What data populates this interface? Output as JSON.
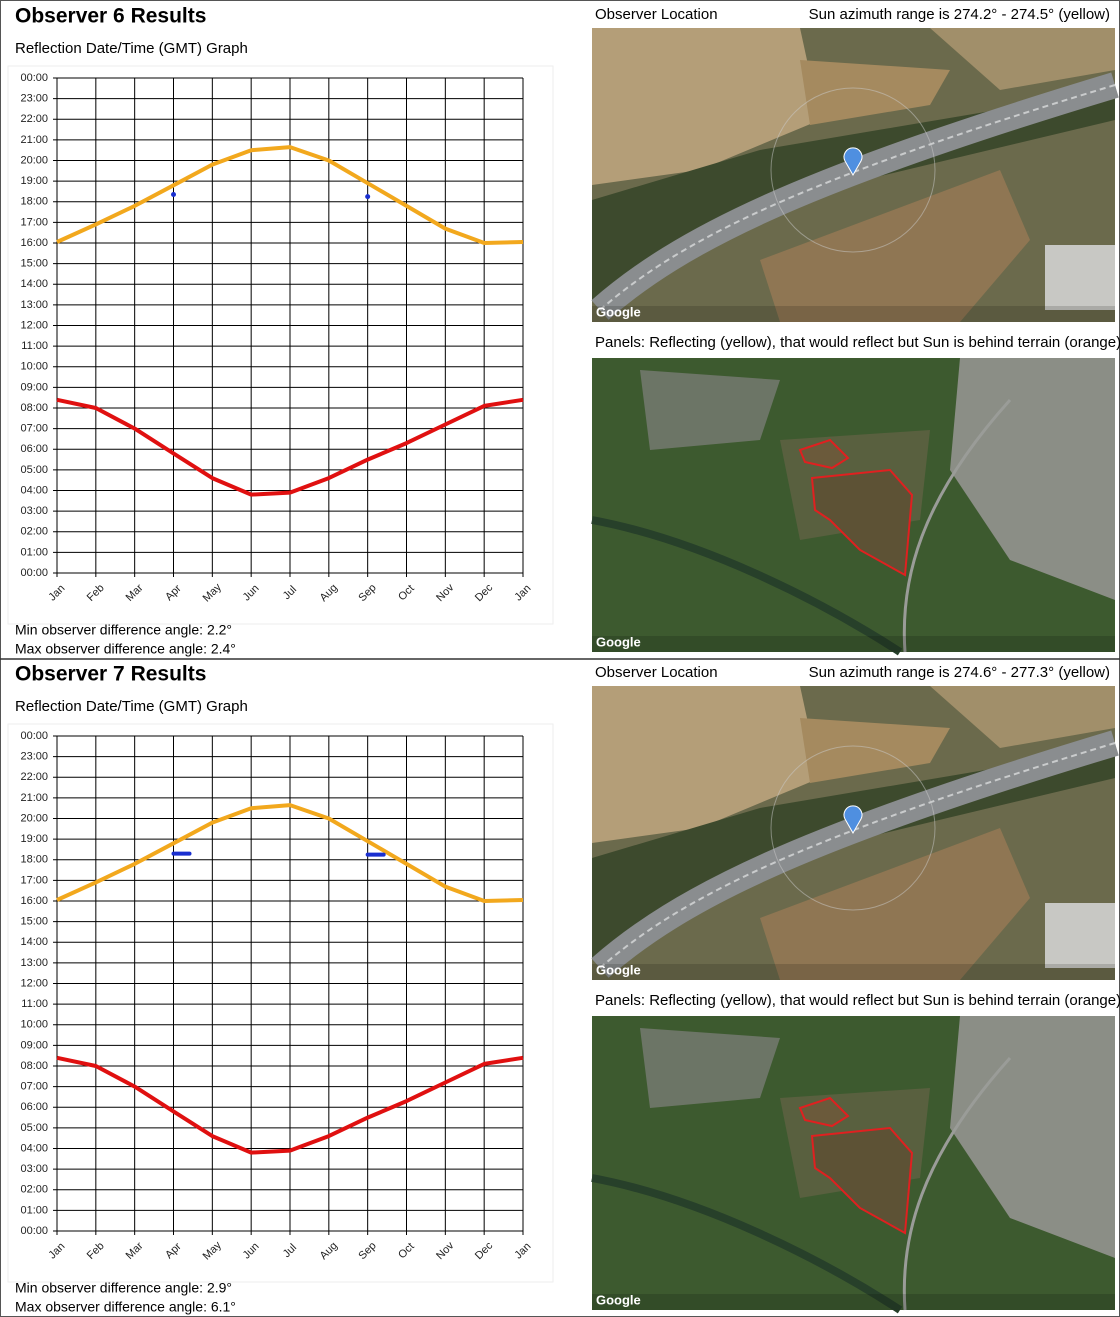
{
  "observers": [
    {
      "title": "Observer 6 Results",
      "graph_title": "Reflection Date/Time (GMT) Graph",
      "min_angle": "Min observer difference angle: 2.2°",
      "max_angle": "Max observer difference angle: 2.4°",
      "location_label": "Observer Location",
      "azimuth": "Sun azimuth range is 274.2° - 274.5° (yellow)",
      "panels_caption": "Panels: Reflecting (yellow), that would reflect but Sun is behind terrain (orange)",
      "map_credits": [
        "Google",
        "Google"
      ]
    },
    {
      "title": "Observer 7 Results",
      "graph_title": "Reflection Date/Time (GMT) Graph",
      "min_angle": "Min observer difference angle: 2.9°",
      "max_angle": "Max observer difference angle: 6.1°",
      "location_label": "Observer Location",
      "azimuth": "Sun azimuth range is 274.6° - 277.3° (yellow)",
      "panels_caption": "Panels: Reflecting (yellow), that would reflect but Sun is behind terrain (orange)",
      "map_credits": [
        "Google",
        "Google"
      ]
    }
  ],
  "chart_data": [
    {
      "type": "line",
      "grid": true,
      "categories": [
        "Jan",
        "Feb",
        "Mar",
        "Apr",
        "May",
        "Jun",
        "Jul",
        "Aug",
        "Sep",
        "Oct",
        "Nov",
        "Dec",
        "Jan"
      ],
      "series": [
        {
          "color": "#f2a81d",
          "values": [
            16.05,
            16.9,
            17.8,
            18.8,
            19.8,
            20.5,
            20.65,
            20.0,
            18.9,
            17.8,
            16.7,
            16.0,
            16.05
          ]
        },
        {
          "color": "#e01010",
          "values": [
            8.4,
            8.0,
            7.0,
            5.8,
            4.6,
            3.8,
            3.9,
            4.6,
            5.5,
            6.3,
            7.2,
            8.1,
            8.4
          ]
        },
        {
          "color": "#1a2fd0",
          "marker": "dot",
          "values": [
            null,
            null,
            null,
            18.35,
            null,
            null,
            null,
            null,
            18.25,
            null,
            null,
            null,
            null
          ]
        }
      ],
      "ylim": [
        0,
        24
      ],
      "yticks": [
        {
          "value": 24,
          "label": "00:00"
        },
        {
          "value": 23,
          "label": "23:00"
        },
        {
          "value": 22,
          "label": "22:00"
        },
        {
          "value": 21,
          "label": "21:00"
        },
        {
          "value": 20,
          "label": "20:00"
        },
        {
          "value": 19,
          "label": "19:00"
        },
        {
          "value": 18,
          "label": "18:00"
        },
        {
          "value": 17,
          "label": "17:00"
        },
        {
          "value": 16,
          "label": "16:00"
        },
        {
          "value": 15,
          "label": "15:00"
        },
        {
          "value": 14,
          "label": "14:00"
        },
        {
          "value": 13,
          "label": "13:00"
        },
        {
          "value": 12,
          "label": "12:00"
        },
        {
          "value": 11,
          "label": "11:00"
        },
        {
          "value": 10,
          "label": "10:00"
        },
        {
          "value": 9,
          "label": "09:00"
        },
        {
          "value": 8,
          "label": "08:00"
        },
        {
          "value": 7,
          "label": "07:00"
        },
        {
          "value": 6,
          "label": "06:00"
        },
        {
          "value": 5,
          "label": "05:00"
        },
        {
          "value": 4,
          "label": "04:00"
        },
        {
          "value": 3,
          "label": "03:00"
        },
        {
          "value": 2,
          "label": "02:00"
        },
        {
          "value": 1,
          "label": "01:00"
        },
        {
          "value": 0,
          "label": "00:00"
        }
      ]
    },
    {
      "type": "line",
      "grid": true,
      "categories": [
        "Jan",
        "Feb",
        "Mar",
        "Apr",
        "May",
        "Jun",
        "Jul",
        "Aug",
        "Sep",
        "Oct",
        "Nov",
        "Dec",
        "Jan"
      ],
      "series": [
        {
          "color": "#f2a81d",
          "values": [
            16.05,
            16.9,
            17.8,
            18.8,
            19.8,
            20.5,
            20.65,
            20.0,
            18.9,
            17.8,
            16.7,
            16.0,
            16.05
          ]
        },
        {
          "color": "#e01010",
          "values": [
            8.4,
            8.0,
            7.0,
            5.8,
            4.6,
            3.8,
            3.9,
            4.6,
            5.5,
            6.3,
            7.2,
            8.1,
            8.4
          ]
        },
        {
          "color": "#1a2fd0",
          "marker": "dash",
          "values": [
            null,
            null,
            null,
            18.3,
            null,
            null,
            null,
            null,
            18.25,
            null,
            null,
            null,
            null
          ]
        }
      ],
      "ylim": [
        0,
        24
      ],
      "yticks": [
        {
          "value": 24,
          "label": "00:00"
        },
        {
          "value": 23,
          "label": "23:00"
        },
        {
          "value": 22,
          "label": "22:00"
        },
        {
          "value": 21,
          "label": "21:00"
        },
        {
          "value": 20,
          "label": "20:00"
        },
        {
          "value": 19,
          "label": "19:00"
        },
        {
          "value": 18,
          "label": "18:00"
        },
        {
          "value": 17,
          "label": "17:00"
        },
        {
          "value": 16,
          "label": "16:00"
        },
        {
          "value": 15,
          "label": "15:00"
        },
        {
          "value": 14,
          "label": "14:00"
        },
        {
          "value": 13,
          "label": "13:00"
        },
        {
          "value": 12,
          "label": "12:00"
        },
        {
          "value": 11,
          "label": "11:00"
        },
        {
          "value": 10,
          "label": "10:00"
        },
        {
          "value": 9,
          "label": "09:00"
        },
        {
          "value": 8,
          "label": "08:00"
        },
        {
          "value": 7,
          "label": "07:00"
        },
        {
          "value": 6,
          "label": "06:00"
        },
        {
          "value": 5,
          "label": "05:00"
        },
        {
          "value": 4,
          "label": "04:00"
        },
        {
          "value": 3,
          "label": "03:00"
        },
        {
          "value": 2,
          "label": "02:00"
        },
        {
          "value": 1,
          "label": "01:00"
        },
        {
          "value": 0,
          "label": "00:00"
        }
      ]
    }
  ]
}
